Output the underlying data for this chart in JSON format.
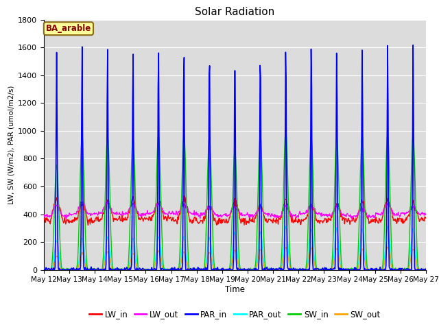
{
  "title": "Solar Radiation",
  "xlabel": "Time",
  "ylabel": "LW, SW (W/m2), PAR (umol/m2/s)",
  "ylim": [
    0,
    1800
  ],
  "n_days": 15,
  "x_tick_labels": [
    "May 12",
    "May 13",
    "May 14",
    "May 15",
    "May 16",
    "May 17",
    "May 18",
    "May 19",
    "May 20",
    "May 21",
    "May 22",
    "May 23",
    "May 24",
    "May 25",
    "May 26",
    "May 27"
  ],
  "annotation_text": "BA_arable",
  "annotation_color": "#8B0000",
  "annotation_bg": "#FFFF99",
  "annotation_border": "#8B6914",
  "bg_color": "#DCDCDC",
  "grid_color": "#FFFFFF",
  "series": {
    "LW_in": {
      "color": "#FF0000",
      "lw": 1.0
    },
    "LW_out": {
      "color": "#FF00FF",
      "lw": 1.0
    },
    "PAR_in": {
      "color": "#0000FF",
      "lw": 1.2
    },
    "PAR_out": {
      "color": "#00FFFF",
      "lw": 1.0
    },
    "SW_in": {
      "color": "#00CC00",
      "lw": 1.0
    },
    "SW_out": {
      "color": "#FFA500",
      "lw": 1.0
    }
  },
  "legend_labels": [
    "LW_in",
    "LW_out",
    "PAR_in",
    "PAR_out",
    "SW_in",
    "SW_out"
  ],
  "legend_colors": [
    "#FF0000",
    "#FF00FF",
    "#0000FF",
    "#00FFFF",
    "#00CC00",
    "#FFA500"
  ]
}
